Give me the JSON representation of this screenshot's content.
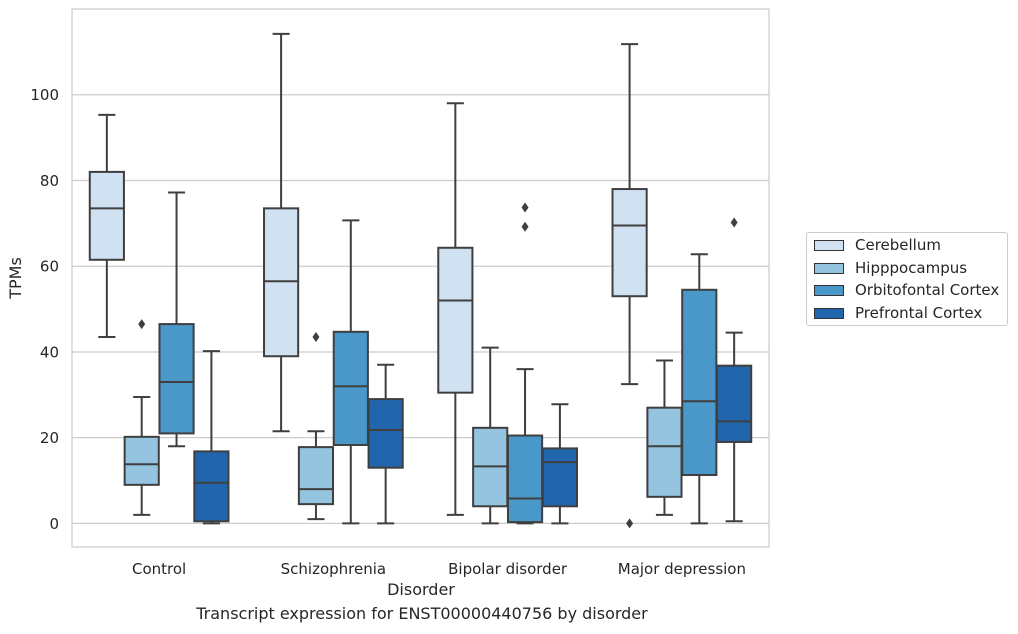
{
  "caption": "Transcript expression for ENST00000440756 by disorder",
  "chart_data": {
    "type": "box",
    "xlabel": "Disorder",
    "ylabel": "TPMs",
    "ylim": [
      -5.5,
      120
    ],
    "yticks": [
      0,
      20,
      40,
      60,
      80,
      100
    ],
    "grid": "horizontal",
    "legend_position": "right",
    "categories": [
      "Control",
      "Schizophrenia",
      "Bipolar disorder",
      "Major depression"
    ],
    "series": [
      {
        "name": "Cerebellum",
        "color": "#d0e1f2",
        "boxes": [
          {
            "whisker_low": 43.5,
            "q1": 61.5,
            "median": 73.5,
            "q3": 82,
            "whisker_high": 95.3,
            "outliers": []
          },
          {
            "whisker_low": 21.5,
            "q1": 39,
            "median": 56.5,
            "q3": 73.5,
            "whisker_high": 114.2,
            "outliers": []
          },
          {
            "whisker_low": 2,
            "q1": 30.5,
            "median": 52,
            "q3": 64.3,
            "whisker_high": 98,
            "outliers": []
          },
          {
            "whisker_low": 32.5,
            "q1": 53,
            "median": 69.5,
            "q3": 78,
            "whisker_high": 111.8,
            "outliers": [
              0
            ]
          }
        ]
      },
      {
        "name": "Hipppocampus",
        "color": "#94c4df",
        "boxes": [
          {
            "whisker_low": 2,
            "q1": 9,
            "median": 13.8,
            "q3": 20.2,
            "whisker_high": 29.5,
            "outliers": [
              46.5
            ]
          },
          {
            "whisker_low": 1,
            "q1": 4.5,
            "median": 8,
            "q3": 17.8,
            "whisker_high": 21.5,
            "outliers": [
              43.5
            ]
          },
          {
            "whisker_low": 0,
            "q1": 4,
            "median": 13.3,
            "q3": 22.3,
            "whisker_high": 41,
            "outliers": []
          },
          {
            "whisker_low": 2,
            "q1": 6.2,
            "median": 18,
            "q3": 27,
            "whisker_high": 38,
            "outliers": []
          }
        ]
      },
      {
        "name": "Orbitofontal Cortex",
        "color": "#4a98c9",
        "boxes": [
          {
            "whisker_low": 18,
            "q1": 21,
            "median": 33,
            "q3": 46.5,
            "whisker_high": 77.2,
            "outliers": []
          },
          {
            "whisker_low": 0,
            "q1": 18.3,
            "median": 32,
            "q3": 44.7,
            "whisker_high": 70.7,
            "outliers": []
          },
          {
            "whisker_low": 0,
            "q1": 0.3,
            "median": 5.8,
            "q3": 20.5,
            "whisker_high": 36,
            "outliers": [
              69.2,
              73.7
            ]
          },
          {
            "whisker_low": 0,
            "q1": 11.3,
            "median": 28.5,
            "q3": 54.5,
            "whisker_high": 62.8,
            "outliers": []
          }
        ]
      },
      {
        "name": "Prefrontal Cortex",
        "color": "#2166ac",
        "boxes": [
          {
            "whisker_low": 0,
            "q1": 0.5,
            "median": 9.5,
            "q3": 16.8,
            "whisker_high": 40.2,
            "outliers": []
          },
          {
            "whisker_low": 0,
            "q1": 13,
            "median": 21.8,
            "q3": 29,
            "whisker_high": 37,
            "outliers": []
          },
          {
            "whisker_low": 0,
            "q1": 4,
            "median": 14.3,
            "q3": 17.5,
            "whisker_high": 27.8,
            "outliers": []
          },
          {
            "whisker_low": 0.5,
            "q1": 19,
            "median": 23.8,
            "q3": 36.8,
            "whisker_high": 44.5,
            "outliers": [
              70.2
            ]
          }
        ]
      }
    ]
  }
}
